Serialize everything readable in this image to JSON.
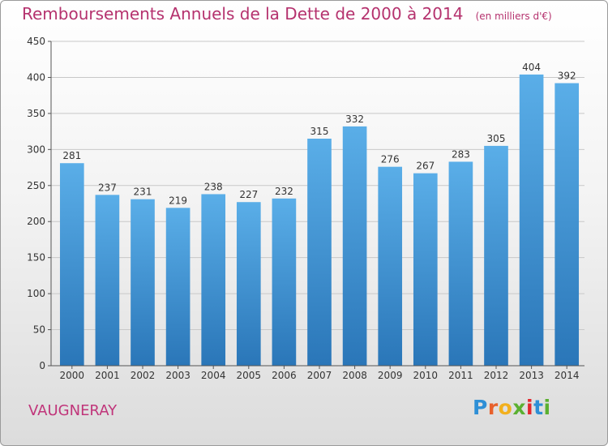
{
  "header": {
    "title": "Remboursements Annuels de la Dette de 2000 à 2014",
    "unit": "(en milliers d'€)"
  },
  "footer": {
    "commune": "VAUGNERAY",
    "logo": "Proxiti"
  },
  "colors": {
    "title": "#b5326e",
    "bar_top": "#5aaee8",
    "bar_bottom": "#2a76b8",
    "grid": "#c8c8c8"
  },
  "chart_data": {
    "type": "bar",
    "title": "Remboursements Annuels de la Dette de 2000 à 2014",
    "xlabel": "",
    "ylabel": "",
    "categories": [
      "2000",
      "2001",
      "2002",
      "2003",
      "2004",
      "2005",
      "2006",
      "2007",
      "2008",
      "2009",
      "2010",
      "2011",
      "2012",
      "2013",
      "2014"
    ],
    "values": [
      281,
      237,
      231,
      219,
      238,
      227,
      232,
      315,
      332,
      276,
      267,
      283,
      305,
      404,
      392
    ],
    "ylim": [
      0,
      450
    ],
    "yticks": [
      0,
      50,
      100,
      150,
      200,
      250,
      300,
      350,
      400,
      450
    ],
    "grid": true,
    "data_labels": true
  }
}
